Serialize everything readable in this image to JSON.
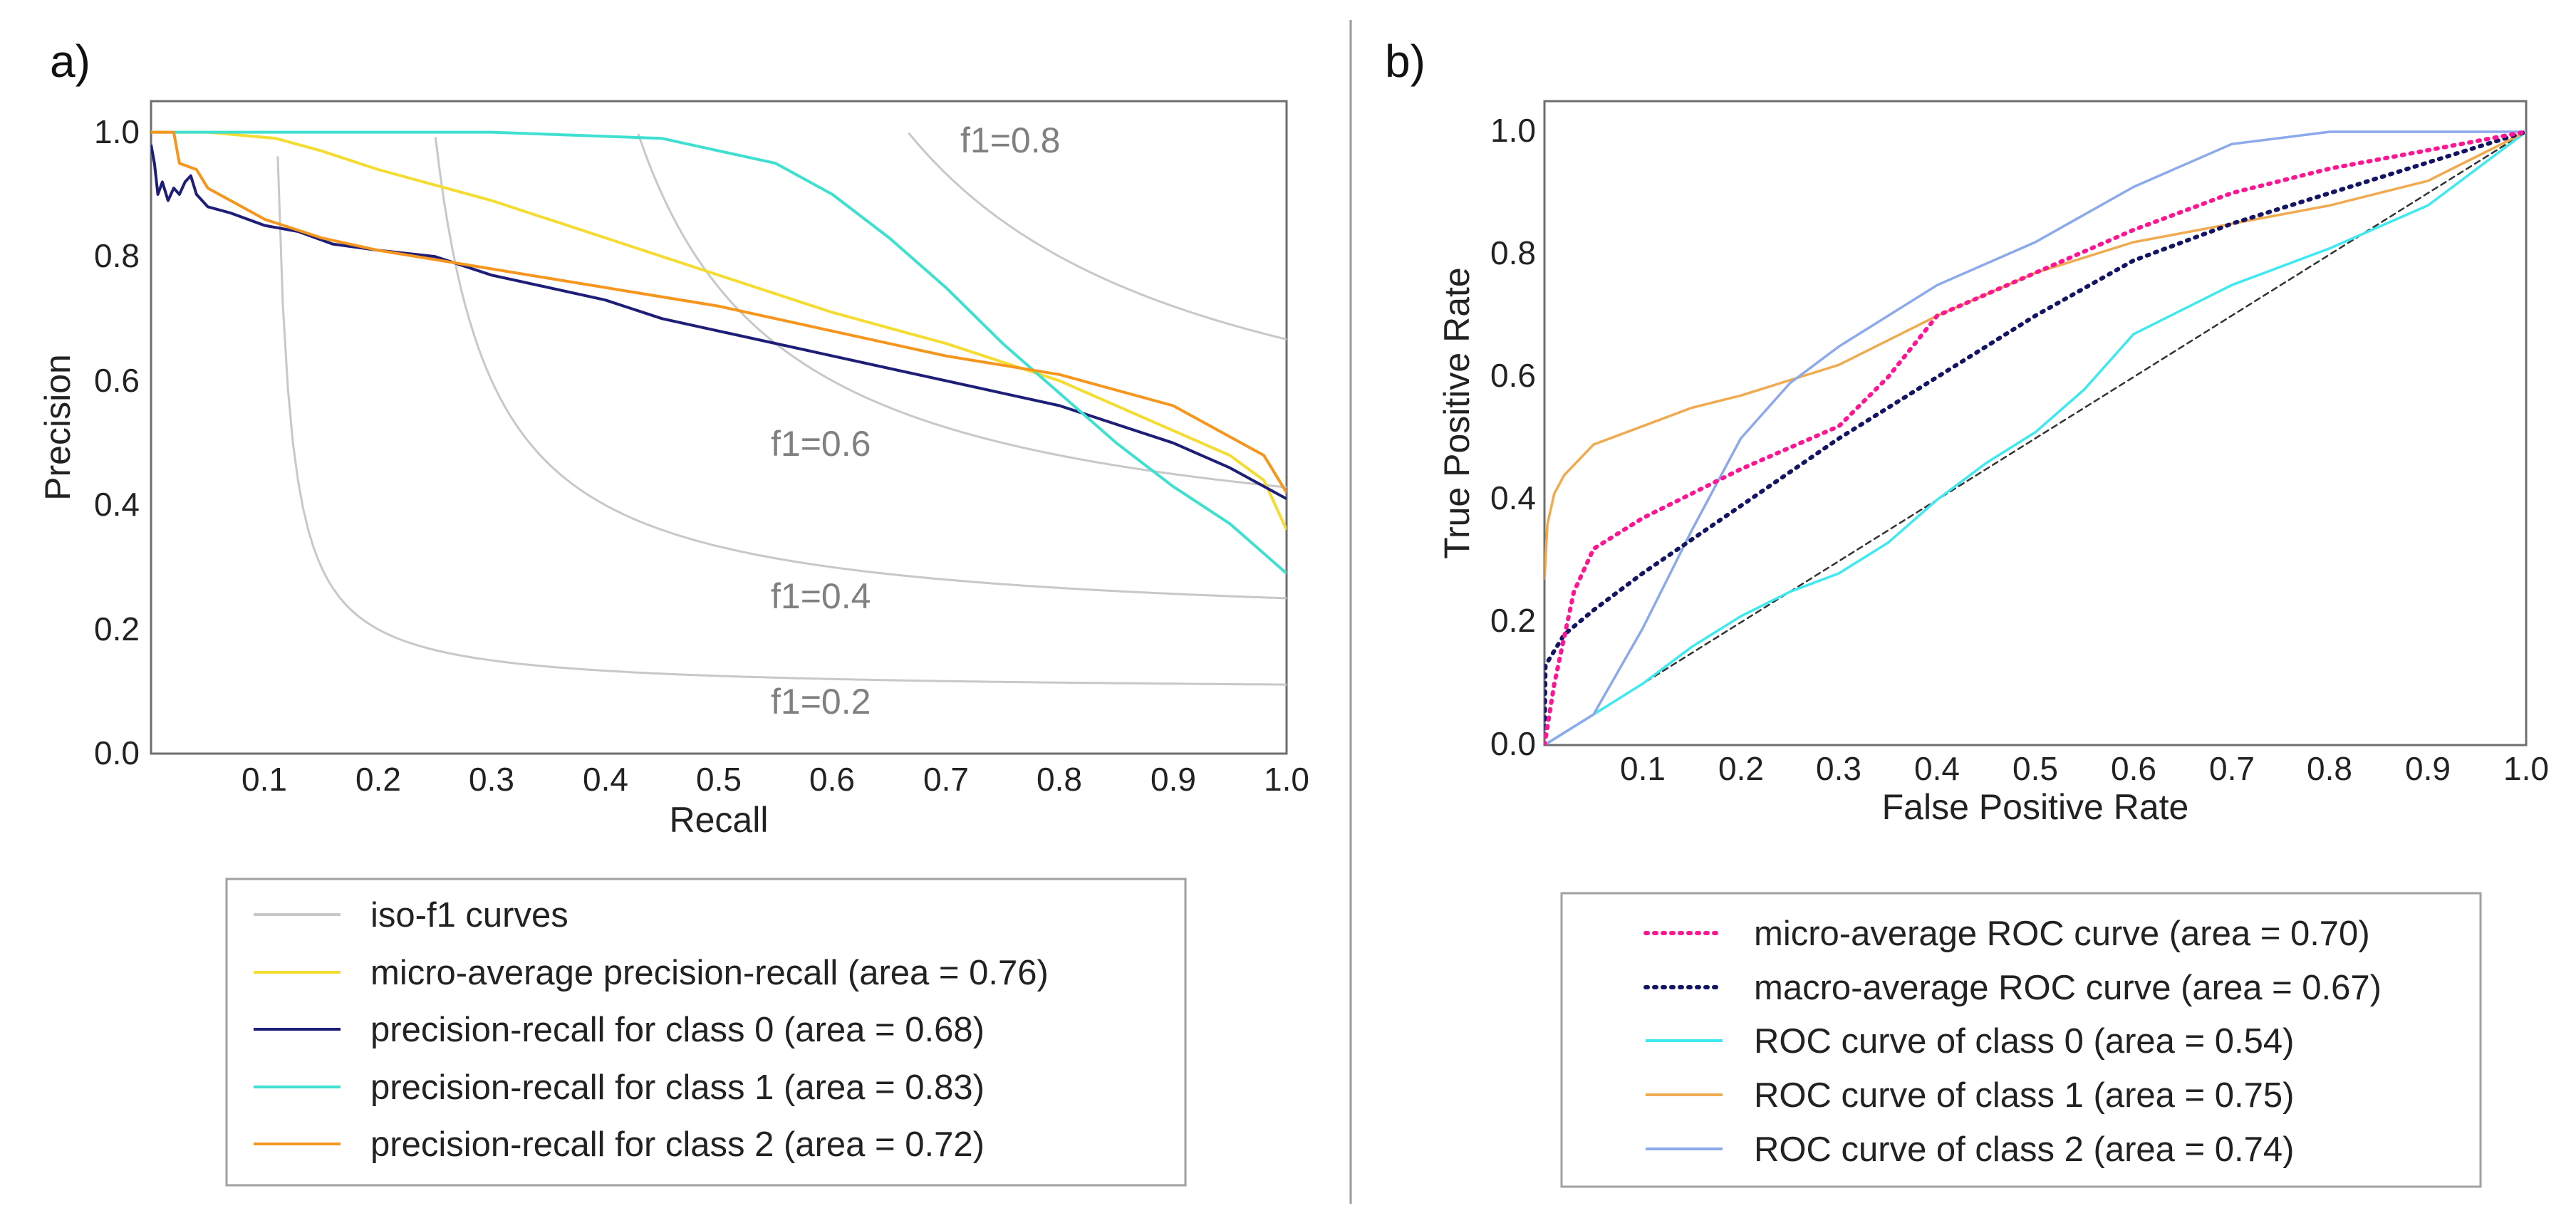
{
  "chart_data": [
    {
      "panel_label": "a)",
      "type": "line",
      "xlabel": "Recall",
      "ylabel": "Precision",
      "xlim": [
        0.0,
        1.0
      ],
      "ylim": [
        0.0,
        1.05
      ],
      "xticks": [
        "0.1",
        "0.2",
        "0.3",
        "0.4",
        "0.5",
        "0.6",
        "0.7",
        "0.8",
        "0.9",
        "1.0"
      ],
      "yticks": [
        "0.0",
        "0.2",
        "0.4",
        "0.6",
        "0.8",
        "1.0"
      ],
      "iso_f1": [
        {
          "label": "f1=0.2",
          "f": 0.2
        },
        {
          "label": "f1=0.4",
          "f": 0.4
        },
        {
          "label": "f1=0.6",
          "f": 0.6
        },
        {
          "label": "f1=0.8",
          "f": 0.8
        }
      ],
      "iso_legend": "iso-f1 curves",
      "iso_color": "#c8c8c8",
      "series": [
        {
          "name": "micro-average precision-recall (area = 0.76)",
          "color": "#f5dc32",
          "dash": "",
          "points": [
            [
              0.0,
              1.0
            ],
            [
              0.05,
              1.0
            ],
            [
              0.11,
              0.99
            ],
            [
              0.15,
              0.97
            ],
            [
              0.2,
              0.94
            ],
            [
              0.3,
              0.89
            ],
            [
              0.4,
              0.83
            ],
            [
              0.5,
              0.77
            ],
            [
              0.6,
              0.71
            ],
            [
              0.7,
              0.66
            ],
            [
              0.8,
              0.6
            ],
            [
              0.9,
              0.52
            ],
            [
              0.95,
              0.48
            ],
            [
              0.98,
              0.44
            ],
            [
              1.0,
              0.36
            ]
          ]
        },
        {
          "name": "precision-recall for class 0 (area = 0.68)",
          "color": "#1e1e78",
          "dash": "",
          "points": [
            [
              0.0,
              0.98
            ],
            [
              0.003,
              0.95
            ],
            [
              0.006,
              0.9
            ],
            [
              0.01,
              0.92
            ],
            [
              0.015,
              0.89
            ],
            [
              0.02,
              0.91
            ],
            [
              0.025,
              0.9
            ],
            [
              0.03,
              0.92
            ],
            [
              0.035,
              0.93
            ],
            [
              0.04,
              0.9
            ],
            [
              0.05,
              0.88
            ],
            [
              0.07,
              0.87
            ],
            [
              0.1,
              0.85
            ],
            [
              0.13,
              0.84
            ],
            [
              0.16,
              0.82
            ],
            [
              0.2,
              0.81
            ],
            [
              0.25,
              0.8
            ],
            [
              0.3,
              0.77
            ],
            [
              0.35,
              0.75
            ],
            [
              0.4,
              0.73
            ],
            [
              0.45,
              0.7
            ],
            [
              0.5,
              0.68
            ],
            [
              0.6,
              0.64
            ],
            [
              0.7,
              0.6
            ],
            [
              0.8,
              0.56
            ],
            [
              0.9,
              0.5
            ],
            [
              0.95,
              0.46
            ],
            [
              1.0,
              0.41
            ]
          ]
        },
        {
          "name": "precision-recall for class 1 (area = 0.83)",
          "color": "#40e0d0",
          "dash": "",
          "points": [
            [
              0.0,
              1.0
            ],
            [
              0.3,
              1.0
            ],
            [
              0.45,
              0.99
            ],
            [
              0.5,
              0.97
            ],
            [
              0.55,
              0.95
            ],
            [
              0.6,
              0.9
            ],
            [
              0.65,
              0.83
            ],
            [
              0.7,
              0.75
            ],
            [
              0.75,
              0.66
            ],
            [
              0.8,
              0.58
            ],
            [
              0.85,
              0.5
            ],
            [
              0.9,
              0.43
            ],
            [
              0.95,
              0.37
            ],
            [
              1.0,
              0.29
            ]
          ]
        },
        {
          "name": "precision-recall for class 2 (area = 0.72)",
          "color": "#f5961e",
          "dash": "",
          "points": [
            [
              0.0,
              1.0
            ],
            [
              0.02,
              1.0
            ],
            [
              0.025,
              0.95
            ],
            [
              0.04,
              0.94
            ],
            [
              0.05,
              0.91
            ],
            [
              0.08,
              0.88
            ],
            [
              0.1,
              0.86
            ],
            [
              0.15,
              0.83
            ],
            [
              0.2,
              0.81
            ],
            [
              0.3,
              0.78
            ],
            [
              0.4,
              0.75
            ],
            [
              0.5,
              0.72
            ],
            [
              0.6,
              0.68
            ],
            [
              0.7,
              0.64
            ],
            [
              0.8,
              0.61
            ],
            [
              0.9,
              0.56
            ],
            [
              0.95,
              0.51
            ],
            [
              0.98,
              0.48
            ],
            [
              1.0,
              0.42
            ]
          ]
        }
      ]
    },
    {
      "panel_label": "b)",
      "type": "line",
      "xlabel": "False Positive Rate",
      "ylabel": "True Positive Rate",
      "xlim": [
        0.0,
        1.0
      ],
      "ylim": [
        0.0,
        1.05
      ],
      "xticks": [
        "0.1",
        "0.2",
        "0.3",
        "0.4",
        "0.5",
        "0.6",
        "0.7",
        "0.8",
        "0.9",
        "1.0"
      ],
      "yticks": [
        "0.0",
        "0.2",
        "0.4",
        "0.6",
        "0.8",
        "1.0"
      ],
      "series": [
        {
          "name": "micro-average ROC curve (area = 0.70)",
          "color": "#ff1493",
          "dash": "3 9",
          "points": [
            [
              0.0,
              0.0
            ],
            [
              0.01,
              0.1
            ],
            [
              0.03,
              0.25
            ],
            [
              0.05,
              0.32
            ],
            [
              0.1,
              0.37
            ],
            [
              0.15,
              0.41
            ],
            [
              0.2,
              0.45
            ],
            [
              0.3,
              0.52
            ],
            [
              0.35,
              0.6
            ],
            [
              0.4,
              0.7
            ],
            [
              0.5,
              0.77
            ],
            [
              0.6,
              0.84
            ],
            [
              0.7,
              0.9
            ],
            [
              0.8,
              0.94
            ],
            [
              0.9,
              0.97
            ],
            [
              1.0,
              1.0
            ]
          ]
        },
        {
          "name": "macro-average ROC curve (area = 0.67)",
          "color": "#141464",
          "dash": "3 9",
          "points": [
            [
              0.0,
              0.0
            ],
            [
              0.001,
              0.13
            ],
            [
              0.02,
              0.18
            ],
            [
              0.05,
              0.22
            ],
            [
              0.1,
              0.28
            ],
            [
              0.2,
              0.39
            ],
            [
              0.3,
              0.5
            ],
            [
              0.4,
              0.6
            ],
            [
              0.5,
              0.7
            ],
            [
              0.6,
              0.79
            ],
            [
              0.7,
              0.85
            ],
            [
              0.8,
              0.9
            ],
            [
              0.9,
              0.95
            ],
            [
              1.0,
              1.0
            ]
          ]
        },
        {
          "name": "ROC curve of class 0 (area = 0.54)",
          "color": "#40e8f0",
          "dash": "",
          "points": [
            [
              0.0,
              0.0
            ],
            [
              0.05,
              0.05
            ],
            [
              0.1,
              0.1
            ],
            [
              0.15,
              0.16
            ],
            [
              0.2,
              0.21
            ],
            [
              0.25,
              0.25
            ],
            [
              0.3,
              0.28
            ],
            [
              0.35,
              0.33
            ],
            [
              0.4,
              0.4
            ],
            [
              0.45,
              0.46
            ],
            [
              0.5,
              0.51
            ],
            [
              0.55,
              0.58
            ],
            [
              0.6,
              0.67
            ],
            [
              0.7,
              0.75
            ],
            [
              0.8,
              0.81
            ],
            [
              0.9,
              0.88
            ],
            [
              1.0,
              1.0
            ]
          ]
        },
        {
          "name": "ROC curve of class 1 (area = 0.75)",
          "color": "#f0aa50",
          "dash": "",
          "points": [
            [
              0.0,
              0.27
            ],
            [
              0.003,
              0.36
            ],
            [
              0.01,
              0.41
            ],
            [
              0.02,
              0.44
            ],
            [
              0.05,
              0.49
            ],
            [
              0.1,
              0.52
            ],
            [
              0.15,
              0.55
            ],
            [
              0.2,
              0.57
            ],
            [
              0.3,
              0.62
            ],
            [
              0.4,
              0.7
            ],
            [
              0.5,
              0.77
            ],
            [
              0.6,
              0.82
            ],
            [
              0.7,
              0.85
            ],
            [
              0.8,
              0.88
            ],
            [
              0.9,
              0.92
            ],
            [
              1.0,
              1.0
            ]
          ]
        },
        {
          "name": "ROC curve of class 2 (area = 0.74)",
          "color": "#8caaeb",
          "dash": "",
          "points": [
            [
              0.0,
              0.0
            ],
            [
              0.05,
              0.05
            ],
            [
              0.1,
              0.19
            ],
            [
              0.15,
              0.35
            ],
            [
              0.2,
              0.5
            ],
            [
              0.25,
              0.59
            ],
            [
              0.3,
              0.65
            ],
            [
              0.4,
              0.75
            ],
            [
              0.5,
              0.82
            ],
            [
              0.6,
              0.91
            ],
            [
              0.7,
              0.98
            ],
            [
              0.8,
              1.0
            ],
            [
              0.9,
              1.0
            ],
            [
              1.0,
              1.0
            ]
          ]
        }
      ],
      "diagonal_color": "#333333"
    }
  ]
}
